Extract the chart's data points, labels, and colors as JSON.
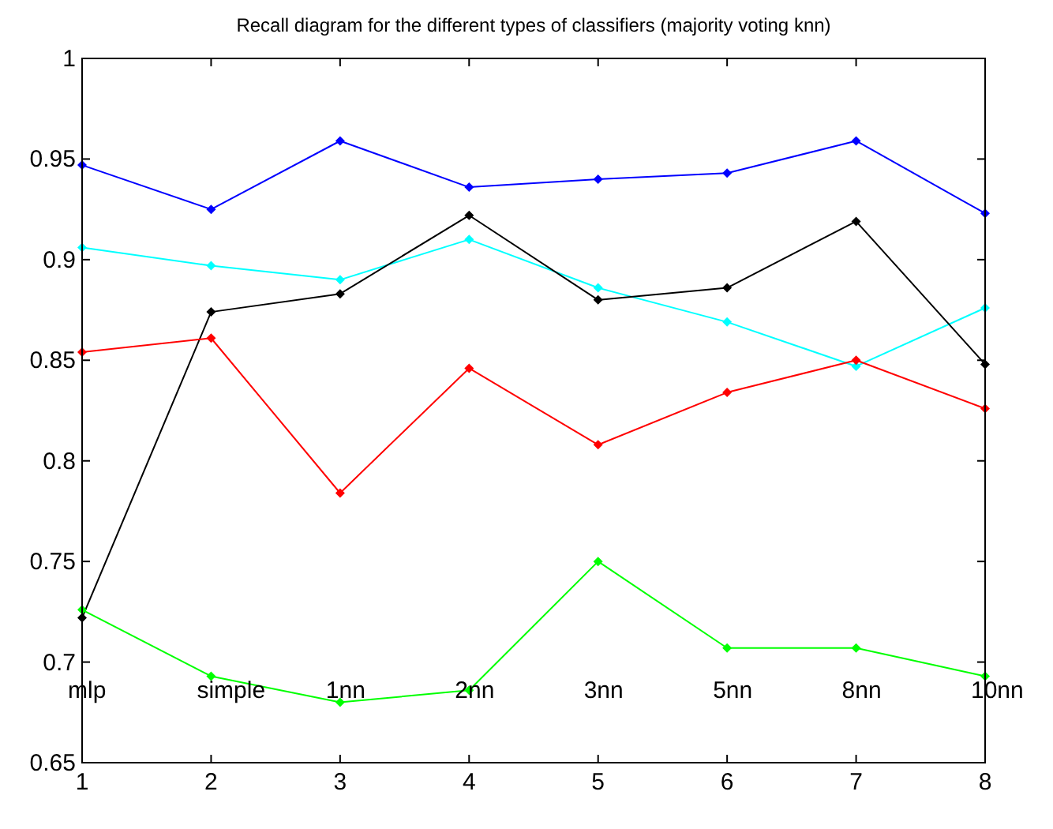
{
  "chart_data": {
    "type": "line",
    "title": "Recall diagram for the different types of classifiers (majority voting knn)",
    "x": [
      1,
      2,
      3,
      4,
      5,
      6,
      7,
      8
    ],
    "series": [
      {
        "color": "#0000ff",
        "values": [
          0.947,
          0.925,
          0.959,
          0.936,
          0.94,
          0.943,
          0.959,
          0.923
        ]
      },
      {
        "color": "#00ffff",
        "values": [
          0.906,
          0.897,
          0.89,
          0.91,
          0.886,
          0.869,
          0.847,
          0.876
        ]
      },
      {
        "color": "#000000",
        "values": [
          0.722,
          0.874,
          0.883,
          0.922,
          0.88,
          0.886,
          0.919,
          0.848
        ]
      },
      {
        "color": "#ff0000",
        "values": [
          0.854,
          0.861,
          0.784,
          0.846,
          0.808,
          0.834,
          0.85,
          0.826
        ]
      },
      {
        "color": "#00ff00",
        "values": [
          0.726,
          0.693,
          0.68,
          0.686,
          0.75,
          0.707,
          0.707,
          0.693
        ]
      }
    ],
    "xlim": [
      1,
      8
    ],
    "xticks": [
      1,
      2,
      3,
      4,
      5,
      6,
      7,
      8
    ],
    "ylim": [
      0.65,
      1
    ],
    "yticks": [
      0.65,
      0.7,
      0.75,
      0.8,
      0.85,
      0.9,
      0.95,
      1
    ],
    "marker": "diamond",
    "line_style": "solid",
    "grid": false,
    "annotations": [
      "mlp",
      "simple",
      "1nn",
      "2nn",
      "3nn",
      "5nn",
      "8nn",
      "10nn"
    ]
  }
}
